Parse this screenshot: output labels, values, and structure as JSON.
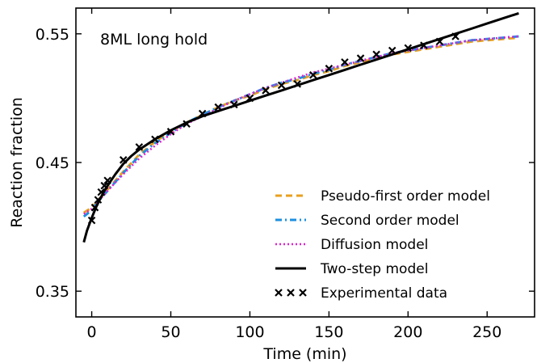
{
  "chart_data": {
    "type": "line",
    "annotation": "8ML long hold",
    "xlabel": "Time (min)",
    "ylabel": "Reaction fraction",
    "xlim": [
      -10,
      280
    ],
    "ylim": [
      0.33,
      0.57
    ],
    "xticks": [
      0,
      50,
      100,
      150,
      200,
      250
    ],
    "xtick_labels": [
      "0",
      "50",
      "100",
      "150",
      "200",
      "250"
    ],
    "yticks": [
      0.35,
      0.45,
      0.55
    ],
    "ytick_labels": [
      "0.35",
      "0.45",
      "0.55"
    ],
    "grid": false,
    "legend_position": "lower-right",
    "series": [
      {
        "name": "Pseudo-first order model",
        "color": "#E8A020",
        "style": "dashed",
        "x": [
          -5,
          0,
          5,
          10,
          20,
          30,
          40,
          50,
          60,
          70,
          80,
          90,
          100,
          110,
          120,
          130,
          140,
          150,
          160,
          170,
          180,
          190,
          200,
          210,
          220,
          230,
          240,
          250,
          260,
          270
        ],
        "y": [
          0.411,
          0.415,
          0.422,
          0.429,
          0.443,
          0.456,
          0.466,
          0.474,
          0.481,
          0.487,
          0.493,
          0.498,
          0.502,
          0.507,
          0.511,
          0.514,
          0.518,
          0.521,
          0.525,
          0.528,
          0.531,
          0.534,
          0.536,
          0.538,
          0.54,
          0.542,
          0.544,
          0.545,
          0.546,
          0.547
        ]
      },
      {
        "name": "Second order model",
        "color": "#1E90E0",
        "style": "dashdot",
        "x": [
          -5,
          0,
          5,
          10,
          20,
          30,
          40,
          50,
          60,
          70,
          80,
          90,
          100,
          110,
          120,
          130,
          140,
          150,
          160,
          170,
          180,
          190,
          200,
          210,
          220,
          230,
          240,
          250,
          260,
          270
        ],
        "y": [
          0.408,
          0.413,
          0.421,
          0.428,
          0.442,
          0.455,
          0.465,
          0.473,
          0.481,
          0.487,
          0.493,
          0.498,
          0.503,
          0.508,
          0.512,
          0.515,
          0.519,
          0.522,
          0.526,
          0.529,
          0.532,
          0.535,
          0.537,
          0.539,
          0.541,
          0.543,
          0.545,
          0.546,
          0.547,
          0.548
        ]
      },
      {
        "name": "Diffusion model",
        "color": "#E020D0",
        "style": "dotted",
        "x": [
          -5,
          0,
          5,
          10,
          20,
          30,
          40,
          50,
          60,
          70,
          80,
          90,
          100,
          110,
          120,
          130,
          140,
          150,
          160,
          170,
          180,
          190,
          200,
          210,
          220,
          230,
          240,
          250,
          260,
          270
        ],
        "y": [
          0.41,
          0.414,
          0.421,
          0.428,
          0.441,
          0.453,
          0.463,
          0.472,
          0.48,
          0.486,
          0.492,
          0.498,
          0.503,
          0.508,
          0.512,
          0.516,
          0.52,
          0.523,
          0.526,
          0.529,
          0.532,
          0.535,
          0.537,
          0.539,
          0.541,
          0.543,
          0.545,
          0.546,
          0.547,
          0.548
        ]
      },
      {
        "name": "Two-step model",
        "color": "#000000",
        "style": "solid",
        "x": [
          -5,
          -3,
          0,
          3,
          5,
          8,
          10,
          15,
          20,
          25,
          30,
          40,
          50,
          60,
          70,
          80,
          90,
          100,
          110,
          120,
          130,
          140,
          150,
          160,
          170,
          180,
          190,
          200,
          210,
          220,
          230,
          240,
          250,
          260,
          270
        ],
        "y": [
          0.388,
          0.397,
          0.407,
          0.416,
          0.421,
          0.428,
          0.432,
          0.441,
          0.449,
          0.455,
          0.46,
          0.468,
          0.475,
          0.481,
          0.486,
          0.49,
          0.494,
          0.498,
          0.502,
          0.506,
          0.51,
          0.514,
          0.518,
          0.522,
          0.526,
          0.53,
          0.534,
          0.538,
          0.542,
          0.546,
          0.55,
          0.554,
          0.558,
          0.562,
          0.566
        ]
      }
    ],
    "scatter": {
      "name": "Experimental data",
      "color": "#000000",
      "marker": "x",
      "x": [
        0,
        2,
        4,
        6,
        8,
        10,
        20,
        30,
        40,
        50,
        60,
        70,
        80,
        90,
        100,
        110,
        120,
        130,
        140,
        150,
        160,
        170,
        180,
        190,
        200,
        210,
        220,
        230
      ],
      "y": [
        0.405,
        0.415,
        0.421,
        0.427,
        0.432,
        0.436,
        0.452,
        0.462,
        0.468,
        0.474,
        0.48,
        0.488,
        0.493,
        0.495,
        0.5,
        0.506,
        0.51,
        0.511,
        0.518,
        0.523,
        0.528,
        0.531,
        0.534,
        0.537,
        0.539,
        0.541,
        0.544,
        0.548
      ]
    }
  }
}
